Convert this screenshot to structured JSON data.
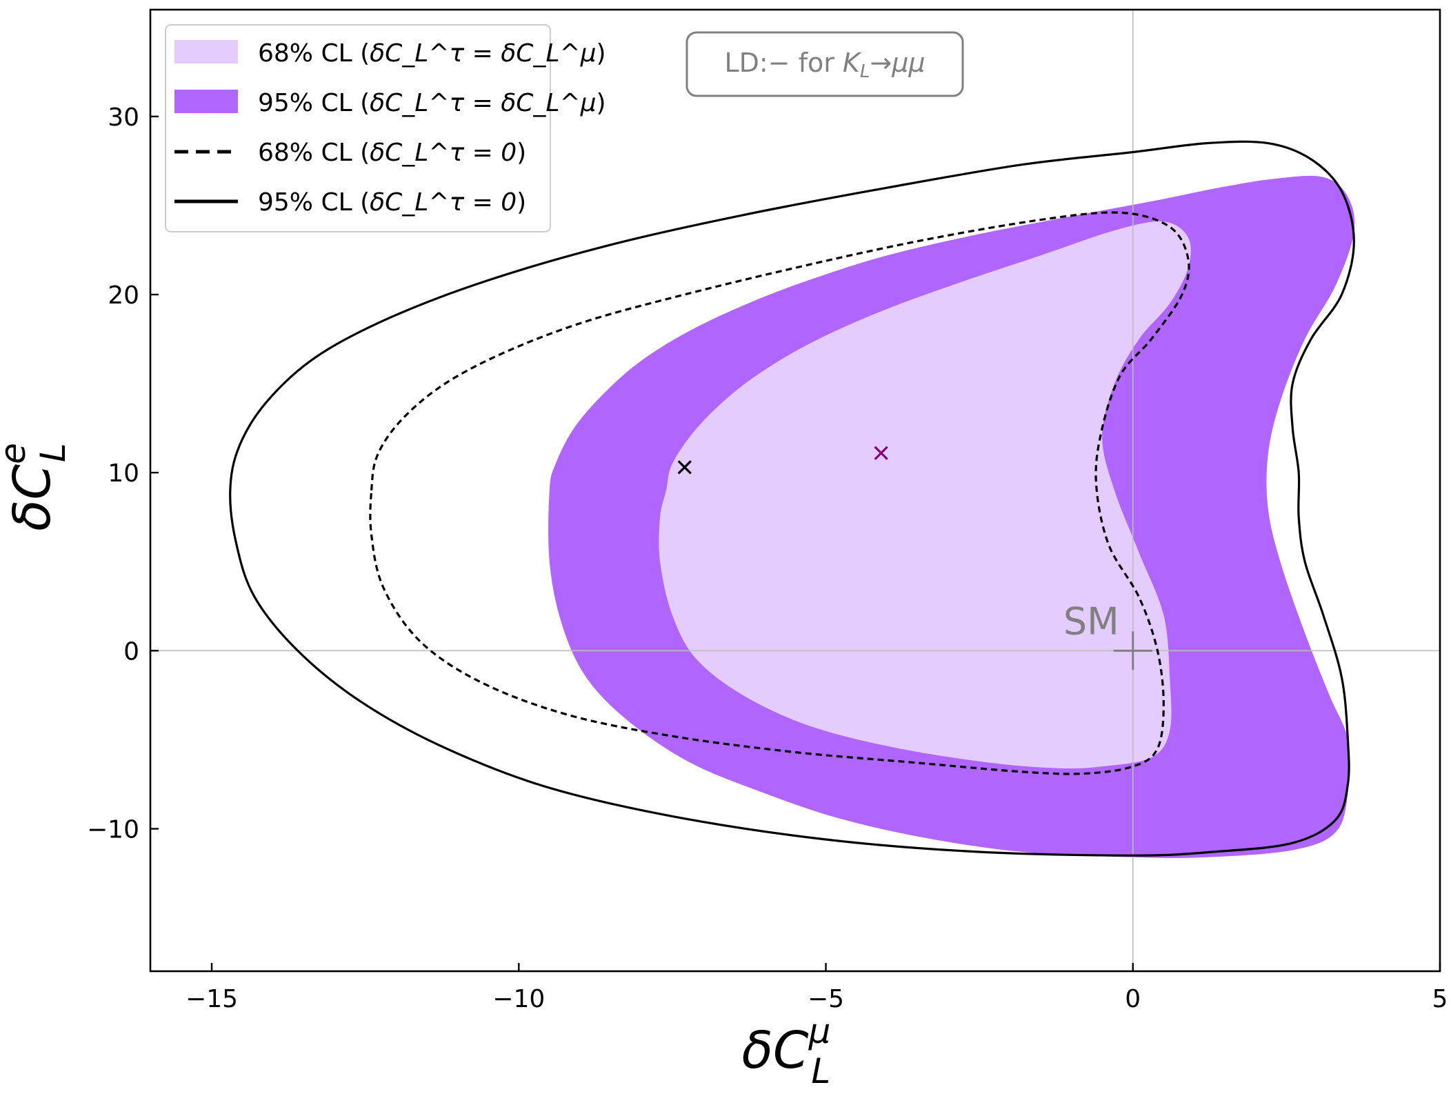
{
  "chart_data": {
    "type": "contour",
    "annotation": "LD:− for K_L→μμ",
    "annotation_parts": {
      "prefix": "LD:− for ",
      "k": "K",
      "k_sub": "L",
      "arrow": "→",
      "mumu": "μμ"
    },
    "xlabel": {
      "base": "δC",
      "sup": "μ",
      "sub": "L"
    },
    "ylabel": {
      "base": "δC",
      "sup": "e",
      "sub": "L"
    },
    "xlim": [
      -16,
      5
    ],
    "ylim": [
      -18,
      36
    ],
    "xticks": [
      -15,
      -10,
      -5,
      0,
      5
    ],
    "yticks": [
      -10,
      0,
      10,
      20,
      30
    ],
    "xtick_labels": [
      "−15",
      "−10",
      "−5",
      "0",
      "5"
    ],
    "ytick_labels": [
      "−10",
      "0",
      "10",
      "20",
      "30"
    ],
    "colors": {
      "cl68_fill": "#e5ccfe",
      "cl95_fill": "#b066fc",
      "contour_line": "#000000",
      "sm_marker": "#808080",
      "bestfit_tau_eq_mu": "#800080",
      "bestfit_tau0": "#000000",
      "reference_lines": "#bbbbbb"
    },
    "legend": {
      "position": "top-left",
      "entries": [
        {
          "style": "fill-68",
          "prefix": "68% CL (",
          "math": "δC_L^τ = δC_L^μ",
          "suffix": ")"
        },
        {
          "style": "fill-95",
          "prefix": "95% CL (",
          "math": "δC_L^τ = δC_L^μ",
          "suffix": ")"
        },
        {
          "style": "dashed",
          "prefix": "68% CL (",
          "math": "δC_L^τ = 0",
          "suffix": ")"
        },
        {
          "style": "solid",
          "prefix": "95% CL (",
          "math": "δC_L^τ = 0",
          "suffix": ")"
        }
      ]
    },
    "sm_point": {
      "label": "SM",
      "x": 0,
      "y": 0
    },
    "best_fit_points": [
      {
        "name": "best-fit-tau-eq-mu",
        "x": -4.1,
        "y": 11.1,
        "color": "#800080"
      },
      {
        "name": "best-fit-tau-zero",
        "x": -7.3,
        "y": 10.3,
        "color": "#000000"
      }
    ],
    "regions": [
      {
        "name": "95-cl-tau-eq-mu-region",
        "style": "fill",
        "color": "#b066fc",
        "points": [
          [
            -9.5,
            9
          ],
          [
            -9.4,
            10.5
          ],
          [
            -9.1,
            12.5
          ],
          [
            -8.6,
            14.5
          ],
          [
            -8,
            16.3
          ],
          [
            -7.2,
            18
          ],
          [
            -6.2,
            19.6
          ],
          [
            -5.2,
            20.9
          ],
          [
            -4,
            22.2
          ],
          [
            -2.5,
            23.4
          ],
          [
            -1,
            24.4
          ],
          [
            0.4,
            25.3
          ],
          [
            1.4,
            26
          ],
          [
            2.3,
            26.5
          ],
          [
            3.1,
            26.6
          ],
          [
            3.5,
            25.5
          ],
          [
            3.6,
            23.5
          ],
          [
            3.3,
            20.5
          ],
          [
            2.8,
            17.5
          ],
          [
            2.4,
            14
          ],
          [
            2.2,
            11
          ],
          [
            2.2,
            8
          ],
          [
            2.4,
            5
          ],
          [
            2.8,
            1
          ],
          [
            3.2,
            -2.5
          ],
          [
            3.5,
            -5
          ],
          [
            3.5,
            -8
          ],
          [
            3.3,
            -10.2
          ],
          [
            2.6,
            -11.2
          ],
          [
            1.2,
            -11.6
          ],
          [
            0,
            -11.6
          ],
          [
            -1.8,
            -11.3
          ],
          [
            -3.4,
            -10.5
          ],
          [
            -4.8,
            -9.4
          ],
          [
            -6,
            -8
          ],
          [
            -7.2,
            -6.3
          ],
          [
            -8.2,
            -4
          ],
          [
            -8.9,
            -1.5
          ],
          [
            -9.3,
            1.5
          ],
          [
            -9.5,
            5
          ]
        ]
      },
      {
        "name": "68-cl-tau-eq-mu-region",
        "style": "fill",
        "color": "#e5ccfe",
        "points": [
          [
            -7.6,
            9
          ],
          [
            -7.5,
            10.5
          ],
          [
            -7.1,
            12.5
          ],
          [
            -6.5,
            14.5
          ],
          [
            -5.8,
            16.2
          ],
          [
            -5,
            17.7
          ],
          [
            -4,
            19.2
          ],
          [
            -2.8,
            20.7
          ],
          [
            -1.5,
            22.2
          ],
          [
            -0.3,
            23.6
          ],
          [
            0.5,
            24.1
          ],
          [
            0.9,
            23.2
          ],
          [
            0.9,
            21.5
          ],
          [
            0.6,
            19.5
          ],
          [
            0.1,
            17.5
          ],
          [
            -0.3,
            15
          ],
          [
            -0.5,
            12
          ],
          [
            -0.3,
            9
          ],
          [
            0.1,
            5.5
          ],
          [
            0.5,
            2
          ],
          [
            0.6,
            -1.5
          ],
          [
            0.6,
            -4.5
          ],
          [
            0.3,
            -6
          ],
          [
            -0.5,
            -6.5
          ],
          [
            -1.2,
            -6.6
          ],
          [
            -2.3,
            -6.3
          ],
          [
            -3.8,
            -5.5
          ],
          [
            -5.2,
            -4.3
          ],
          [
            -6.3,
            -2.6
          ],
          [
            -7.1,
            -0.5
          ],
          [
            -7.5,
            2
          ],
          [
            -7.7,
            5
          ],
          [
            -7.7,
            7.5
          ]
        ]
      },
      {
        "name": "68-cl-tau-zero-contour",
        "style": "dashed",
        "color": "#000000",
        "points": [
          [
            -12.4,
            9
          ],
          [
            -12.3,
            11
          ],
          [
            -11.9,
            13
          ],
          [
            -11.2,
            15
          ],
          [
            -10.2,
            16.8
          ],
          [
            -8.9,
            18.5
          ],
          [
            -7.3,
            20
          ],
          [
            -5.5,
            21.5
          ],
          [
            -3.5,
            23
          ],
          [
            -1.5,
            24.2
          ],
          [
            -0.2,
            24.6
          ],
          [
            0.6,
            23.8
          ],
          [
            0.9,
            22
          ],
          [
            0.8,
            20
          ],
          [
            0.3,
            17.5
          ],
          [
            -0.2,
            15.5
          ],
          [
            -0.5,
            12.5
          ],
          [
            -0.6,
            9.5
          ],
          [
            -0.4,
            6
          ],
          [
            0.1,
            3
          ],
          [
            0.4,
            0
          ],
          [
            0.5,
            -3
          ],
          [
            0.4,
            -5.5
          ],
          [
            0,
            -6.5
          ],
          [
            -0.8,
            -6.9
          ],
          [
            -1.8,
            -6.8
          ],
          [
            -3.5,
            -6.3
          ],
          [
            -5.5,
            -5.7
          ],
          [
            -7.5,
            -4.8
          ],
          [
            -9.2,
            -3.6
          ],
          [
            -10.6,
            -1.8
          ],
          [
            -11.6,
            0.5
          ],
          [
            -12.2,
            3.5
          ],
          [
            -12.4,
            6.5
          ]
        ]
      },
      {
        "name": "95-cl-tau-zero-contour",
        "style": "solid",
        "color": "#000000",
        "points": [
          [
            -14.7,
            9
          ],
          [
            -14.55,
            11.5
          ],
          [
            -14.1,
            14
          ],
          [
            -13.3,
            16.5
          ],
          [
            -12.1,
            18.7
          ],
          [
            -10.5,
            20.8
          ],
          [
            -8.5,
            22.8
          ],
          [
            -6.3,
            24.5
          ],
          [
            -4,
            26
          ],
          [
            -1.8,
            27.3
          ],
          [
            0,
            28
          ],
          [
            1.2,
            28.5
          ],
          [
            2.2,
            28.5
          ],
          [
            2.9,
            27.6
          ],
          [
            3.4,
            25.8
          ],
          [
            3.6,
            23
          ],
          [
            3.4,
            20
          ],
          [
            2.9,
            17.5
          ],
          [
            2.6,
            15
          ],
          [
            2.6,
            12.5
          ],
          [
            2.7,
            10
          ],
          [
            2.7,
            7.5
          ],
          [
            2.8,
            5
          ],
          [
            3.1,
            2
          ],
          [
            3.4,
            -1.5
          ],
          [
            3.5,
            -5
          ],
          [
            3.5,
            -7.5
          ],
          [
            3.3,
            -9.5
          ],
          [
            2.6,
            -10.8
          ],
          [
            1.3,
            -11.3
          ],
          [
            0,
            -11.5
          ],
          [
            -2.5,
            -11.3
          ],
          [
            -5,
            -10.6
          ],
          [
            -7.5,
            -9.3
          ],
          [
            -9.6,
            -7.6
          ],
          [
            -11.3,
            -5.3
          ],
          [
            -12.6,
            -2.8
          ],
          [
            -13.6,
            0
          ],
          [
            -14.3,
            3
          ],
          [
            -14.6,
            6
          ]
        ]
      }
    ]
  }
}
